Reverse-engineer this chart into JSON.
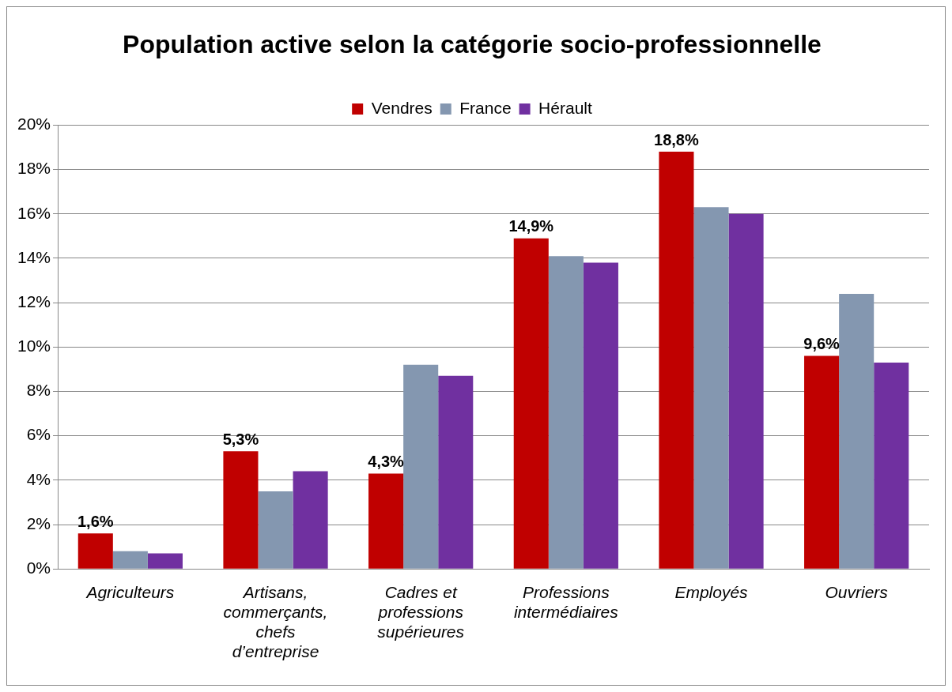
{
  "chart_data": {
    "type": "bar",
    "title": "Population active selon la catégorie socio-professionnelle",
    "categories": [
      "Agriculteurs",
      "Artisans, commerçants, chefs d’entreprise",
      "Cadres et professions supérieures",
      "Professions intermédiaires",
      "Employés",
      "Ouvriers"
    ],
    "series": [
      {
        "name": "Vendres",
        "color": "#c00000",
        "values": [
          1.6,
          5.3,
          4.3,
          14.9,
          18.8,
          9.6
        ],
        "value_labels": [
          "1,6%",
          "5,3%",
          "4,3%",
          "14,9%",
          "18,8%",
          "9,6%"
        ]
      },
      {
        "name": "France",
        "color": "#8497b0",
        "values": [
          0.8,
          3.5,
          9.2,
          14.1,
          16.3,
          12.4
        ]
      },
      {
        "name": "Hérault",
        "color": "#7030a0",
        "values": [
          0.7,
          4.4,
          8.7,
          13.8,
          16.0,
          9.3
        ]
      }
    ],
    "ylim": [
      0,
      20
    ],
    "yticks": [
      {
        "value": 0,
        "label": "0%"
      },
      {
        "value": 2,
        "label": "2%"
      },
      {
        "value": 4,
        "label": "4%"
      },
      {
        "value": 6,
        "label": "6%"
      },
      {
        "value": 8,
        "label": "8%"
      },
      {
        "value": 10,
        "label": "10%"
      },
      {
        "value": 12,
        "label": "12%"
      },
      {
        "value": 14,
        "label": "14%"
      },
      {
        "value": 16,
        "label": "16%"
      },
      {
        "value": 18,
        "label": "18%"
      },
      {
        "value": 20,
        "label": "20%"
      }
    ],
    "grid": "y",
    "legend": "top"
  }
}
